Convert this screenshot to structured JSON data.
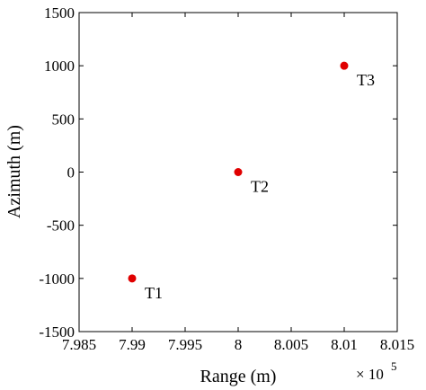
{
  "chart_data": {
    "type": "scatter",
    "xlabel": "Range (m)",
    "ylabel": "Azimuth (m)",
    "xlim": [
      7.985,
      8.015
    ],
    "ylim": [
      -1500,
      1500
    ],
    "x_scale_note": "× 10^5",
    "x_multiplier_text": "× 10",
    "x_multiplier_exponent": "5",
    "x_ticks": [
      "7.985",
      "7.99",
      "7.995",
      "8",
      "8.005",
      "8.01",
      "8.015"
    ],
    "y_ticks": [
      "-1500",
      "-1000",
      "-500",
      "0",
      "500",
      "1000",
      "1500"
    ],
    "points": [
      {
        "label": "T1",
        "x": 7.99,
        "y": -1000
      },
      {
        "label": "T2",
        "x": 8.0,
        "y": 0
      },
      {
        "label": "T3",
        "x": 8.01,
        "y": 1000
      }
    ],
    "marker_color": "#e00000",
    "grid": false,
    "box": true
  }
}
